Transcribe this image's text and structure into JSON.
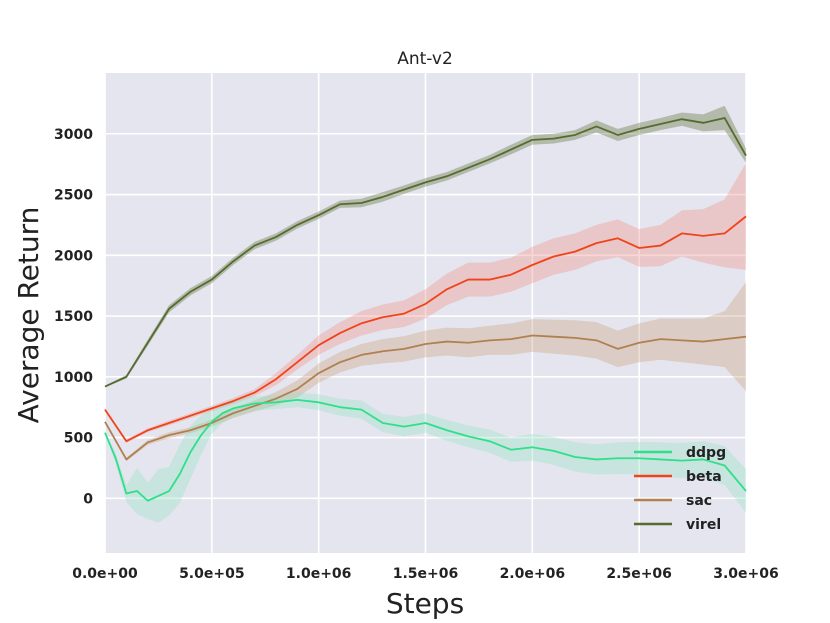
{
  "chart_data": {
    "type": "line",
    "title": "Ant-v2",
    "xlabel": "Steps",
    "ylabel": "Average Return",
    "xlim": [
      0,
      3000000
    ],
    "ylim": [
      -450,
      3500
    ],
    "xticks": [
      {
        "value": 0,
        "label": "0.0e+00"
      },
      {
        "value": 500000,
        "label": "5.0e+05"
      },
      {
        "value": 1000000,
        "label": "1.0e+06"
      },
      {
        "value": 1500000,
        "label": "1.5e+06"
      },
      {
        "value": 2000000,
        "label": "2.0e+06"
      },
      {
        "value": 2500000,
        "label": "2.5e+06"
      },
      {
        "value": 3000000,
        "label": "3.0e+06"
      }
    ],
    "yticks": [
      {
        "value": 0,
        "label": "0"
      },
      {
        "value": 500,
        "label": "500"
      },
      {
        "value": 1000,
        "label": "1000"
      },
      {
        "value": 1500,
        "label": "1500"
      },
      {
        "value": 2000,
        "label": "2000"
      },
      {
        "value": 2500,
        "label": "2500"
      },
      {
        "value": 3000,
        "label": "3000"
      }
    ],
    "grid": true,
    "legend_position": "bottom-right",
    "series": [
      {
        "name": "virel",
        "color": "#556b2f",
        "band_color": "#556b2f",
        "x": [
          0,
          100000,
          200000,
          300000,
          400000,
          500000,
          600000,
          700000,
          800000,
          900000,
          1000000,
          1100000,
          1200000,
          1300000,
          1400000,
          1500000,
          1600000,
          1700000,
          1800000,
          1900000,
          2000000,
          2100000,
          2200000,
          2300000,
          2400000,
          2500000,
          2600000,
          2700000,
          2800000,
          2900000,
          3000000
        ],
        "y": [
          920,
          1000,
          1280,
          1560,
          1700,
          1800,
          1950,
          2080,
          2150,
          2250,
          2330,
          2420,
          2430,
          2480,
          2540,
          2600,
          2650,
          2720,
          2790,
          2870,
          2950,
          2960,
          2990,
          3060,
          2990,
          3040,
          3080,
          3120,
          3090,
          3130,
          2820
        ],
        "lower": [
          915,
          985,
          1255,
          1530,
          1670,
          1770,
          1920,
          2050,
          2120,
          2220,
          2300,
          2390,
          2395,
          2440,
          2505,
          2565,
          2615,
          2685,
          2755,
          2830,
          2910,
          2920,
          2950,
          3010,
          2940,
          2990,
          3030,
          3065,
          3020,
          3030,
          2760
        ],
        "upper": [
          925,
          1015,
          1305,
          1590,
          1730,
          1830,
          1980,
          2110,
          2180,
          2280,
          2360,
          2450,
          2465,
          2520,
          2575,
          2635,
          2685,
          2755,
          2825,
          2910,
          2990,
          3000,
          3030,
          3110,
          3040,
          3090,
          3130,
          3175,
          3160,
          3230,
          2880
        ]
      },
      {
        "name": "beta",
        "color": "#f0431a",
        "band_color": "#f28b82",
        "x": [
          0,
          100000,
          200000,
          300000,
          400000,
          500000,
          600000,
          700000,
          800000,
          900000,
          1000000,
          1100000,
          1200000,
          1300000,
          1400000,
          1500000,
          1600000,
          1700000,
          1800000,
          1900000,
          2000000,
          2100000,
          2200000,
          2300000,
          2400000,
          2500000,
          2600000,
          2700000,
          2800000,
          2900000,
          3000000
        ],
        "y": [
          730,
          470,
          560,
          620,
          680,
          740,
          800,
          870,
          980,
          1120,
          1260,
          1360,
          1440,
          1490,
          1520,
          1600,
          1720,
          1800,
          1800,
          1840,
          1920,
          1990,
          2030,
          2100,
          2140,
          2060,
          2080,
          2180,
          2160,
          2180,
          2320
        ],
        "lower": [
          720,
          455,
          545,
          600,
          660,
          718,
          775,
          842,
          930,
          1060,
          1180,
          1270,
          1340,
          1385,
          1410,
          1480,
          1590,
          1660,
          1660,
          1700,
          1770,
          1840,
          1880,
          1950,
          1985,
          1905,
          1910,
          1990,
          1940,
          1900,
          1880
        ],
        "upper": [
          740,
          485,
          575,
          640,
          700,
          762,
          825,
          898,
          1030,
          1180,
          1340,
          1450,
          1540,
          1595,
          1630,
          1720,
          1850,
          1940,
          1940,
          1980,
          2070,
          2140,
          2180,
          2250,
          2295,
          2215,
          2250,
          2370,
          2380,
          2460,
          2760
        ]
      },
      {
        "name": "sac",
        "color": "#b08050",
        "band_color": "#c8a07a",
        "x": [
          0,
          100000,
          200000,
          300000,
          400000,
          500000,
          600000,
          700000,
          800000,
          900000,
          1000000,
          1100000,
          1200000,
          1300000,
          1400000,
          1500000,
          1600000,
          1700000,
          1800000,
          1900000,
          2000000,
          2100000,
          2200000,
          2300000,
          2400000,
          2500000,
          2600000,
          2700000,
          2800000,
          2900000,
          3000000
        ],
        "y": [
          630,
          320,
          460,
          520,
          560,
          620,
          700,
          760,
          820,
          900,
          1030,
          1120,
          1180,
          1210,
          1230,
          1270,
          1290,
          1280,
          1300,
          1310,
          1340,
          1330,
          1320,
          1300,
          1230,
          1280,
          1310,
          1300,
          1290,
          1310,
          1330
        ],
        "lower": [
          620,
          305,
          440,
          495,
          535,
          590,
          660,
          715,
          765,
          830,
          950,
          1035,
          1090,
          1110,
          1125,
          1160,
          1175,
          1160,
          1180,
          1180,
          1205,
          1190,
          1175,
          1150,
          1080,
          1120,
          1140,
          1120,
          1100,
          1080,
          880
        ],
        "upper": [
          640,
          335,
          480,
          545,
          585,
          650,
          740,
          805,
          875,
          970,
          1110,
          1205,
          1270,
          1310,
          1335,
          1380,
          1405,
          1400,
          1420,
          1440,
          1475,
          1470,
          1465,
          1450,
          1380,
          1440,
          1480,
          1480,
          1480,
          1540,
          1780
        ]
      },
      {
        "name": "ddpg",
        "color": "#2ee08a",
        "band_color": "#8fe3c0",
        "x": [
          0,
          50000,
          100000,
          150000,
          200000,
          250000,
          300000,
          350000,
          400000,
          450000,
          500000,
          550000,
          600000,
          700000,
          800000,
          900000,
          1000000,
          1100000,
          1200000,
          1300000,
          1400000,
          1500000,
          1600000,
          1700000,
          1800000,
          1900000,
          2000000,
          2100000,
          2200000,
          2300000,
          2400000,
          2500000,
          2600000,
          2700000,
          2800000,
          2900000,
          3000000
        ],
        "y": [
          540,
          330,
          40,
          60,
          -20,
          20,
          60,
          200,
          380,
          520,
          630,
          700,
          740,
          780,
          790,
          810,
          790,
          750,
          730,
          620,
          590,
          620,
          560,
          510,
          470,
          400,
          420,
          390,
          340,
          320,
          330,
          330,
          320,
          310,
          320,
          270,
          60
        ],
        "lower": [
          530,
          290,
          -30,
          -130,
          -170,
          -200,
          -140,
          -40,
          160,
          360,
          530,
          620,
          670,
          720,
          735,
          750,
          725,
          680,
          655,
          545,
          510,
          540,
          475,
          420,
          375,
          300,
          310,
          275,
          220,
          195,
          200,
          195,
          180,
          165,
          170,
          110,
          -120
        ],
        "upper": [
          550,
          370,
          110,
          250,
          130,
          240,
          260,
          440,
          600,
          680,
          730,
          780,
          810,
          840,
          845,
          870,
          855,
          820,
          805,
          695,
          670,
          700,
          645,
          600,
          565,
          500,
          530,
          505,
          460,
          445,
          460,
          465,
          460,
          455,
          470,
          430,
          240
        ]
      }
    ]
  }
}
